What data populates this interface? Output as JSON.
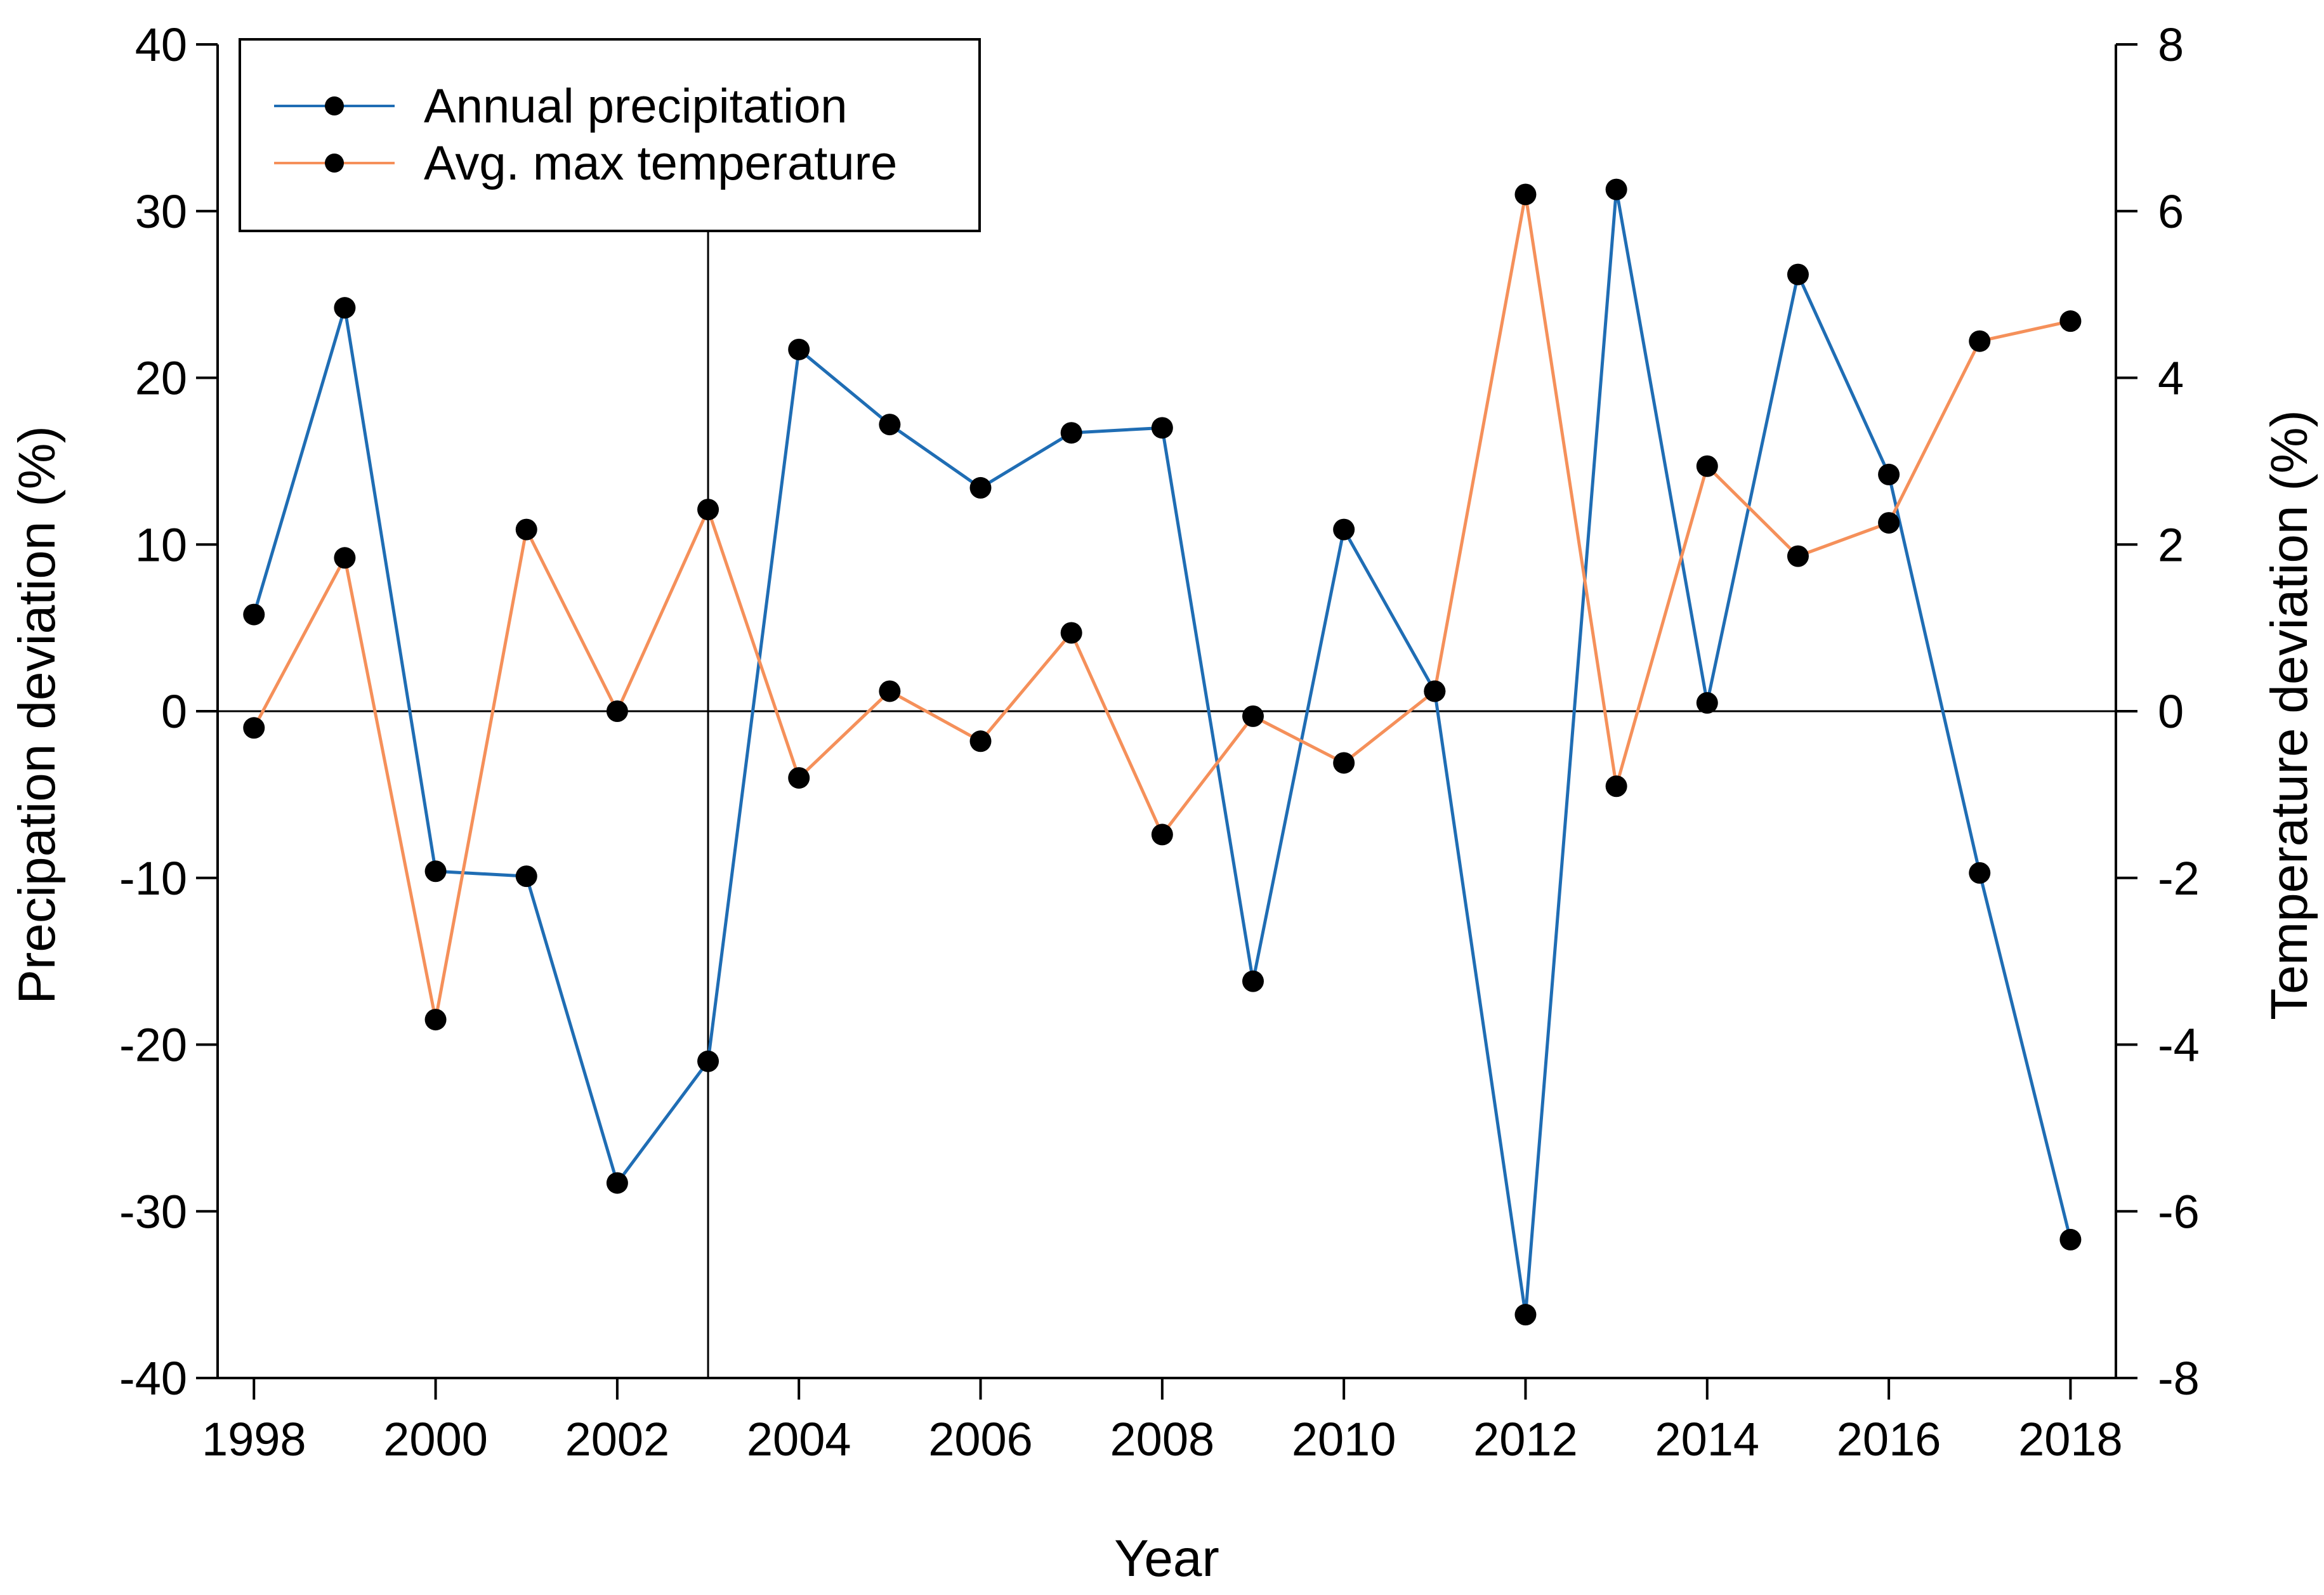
{
  "chart_data": {
    "type": "line",
    "title": "",
    "xlabel": "Year",
    "ylabel_left": "Precipation deviation (%)",
    "ylabel_right": "Temperature deviation (%)",
    "x": [
      1998,
      1999,
      2000,
      2001,
      2002,
      2003,
      2004,
      2005,
      2006,
      2007,
      2008,
      2009,
      2010,
      2011,
      2012,
      2013,
      2014,
      2015,
      2016,
      2017,
      2018
    ],
    "x_ticks": [
      "1998",
      "2000",
      "2002",
      "2004",
      "2006",
      "2008",
      "2010",
      "2012",
      "2014",
      "2016",
      "2018"
    ],
    "xlim": [
      1997.6,
      2018.5
    ],
    "ylim_left": [
      -40,
      40
    ],
    "ylim_right": [
      -8,
      8
    ],
    "y_ticks_left": [
      "-40",
      "-30",
      "-20",
      "-10",
      "0",
      "10",
      "20",
      "30",
      "40"
    ],
    "y_ticks_right": [
      "-8",
      "-6",
      "-4",
      "-2",
      "0",
      "2",
      "4",
      "6",
      "8"
    ],
    "reference_lines": {
      "horizontal_y_left": 0,
      "vertical_x": 2003
    },
    "legend_position": "top-left",
    "series": [
      {
        "name": "Annual precipitation",
        "axis": "left",
        "color": "#1f6db4",
        "marker_color": "#000000",
        "values": [
          5.8,
          24.2,
          -9.6,
          -9.9,
          -28.3,
          -21.0,
          21.7,
          17.2,
          13.4,
          16.7,
          17.0,
          -16.2,
          10.9,
          1.2,
          -36.2,
          31.3,
          0.5,
          26.2,
          14.2,
          -9.7,
          -31.7
        ]
      },
      {
        "name": "Avg. max temperature",
        "axis": "right",
        "color": "#f5905a",
        "marker_color": "#000000",
        "values": [
          -0.2,
          1.84,
          -3.7,
          2.18,
          0.0,
          2.42,
          -0.8,
          0.24,
          -0.36,
          0.94,
          -1.48,
          -0.06,
          -0.62,
          0.24,
          6.2,
          -0.9,
          2.94,
          1.86,
          2.26,
          4.44,
          4.68
        ]
      }
    ]
  }
}
